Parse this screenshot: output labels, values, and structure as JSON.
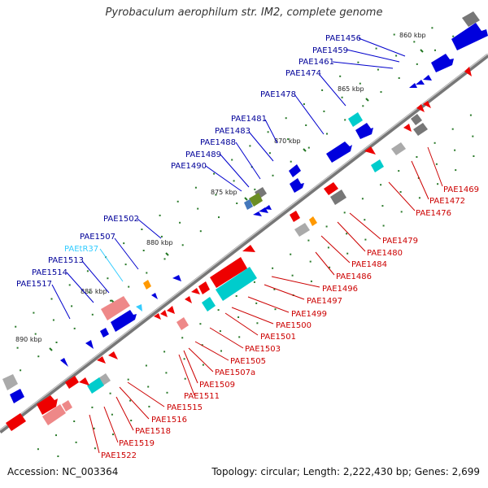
{
  "title": "Pyrobaculum aerophilum str. IM2, complete genome",
  "accession": "Accession: NC_003364",
  "topology": "Topology: circular; Length: 2,222,430 bp; Genes: 2,699",
  "kbp_ticks": [
    "860 kbp",
    "865 kbp",
    "870 kbp",
    "875 kbp",
    "880 kbp",
    "885 kbp",
    "890 kbp"
  ],
  "forward_genes": [
    "PAE1456",
    "PAE1459",
    "PAE1461",
    "PAE1474",
    "PAE1478",
    "PAE1481",
    "PAE1483",
    "PAE1488",
    "PAE1489",
    "PAE1490",
    "PAE1502",
    "PAE1507",
    "PAEtR37",
    "PAE1513",
    "PAE1514",
    "PAE1517"
  ],
  "reverse_genes": [
    "PAE1469",
    "PAE1472",
    "PAE1476",
    "PAE1479",
    "PAE1480",
    "PAE1484",
    "PAE1486",
    "PAE1496",
    "PAE1497",
    "PAE1499",
    "PAE1500",
    "PAE1501",
    "PAE1503",
    "PAE1505",
    "PAE1507a",
    "PAE1509",
    "PAE1511",
    "PAE1515",
    "PAE1516",
    "PAE1518",
    "PAE1519",
    "PAE1522"
  ],
  "colors": {
    "forward": "#0000dd",
    "forward_label": "#000099",
    "trna": "#33ccff",
    "reverse": "#ee0000",
    "reverse_label": "#cc0000",
    "backbone": "#888888",
    "tick": "#227722"
  }
}
